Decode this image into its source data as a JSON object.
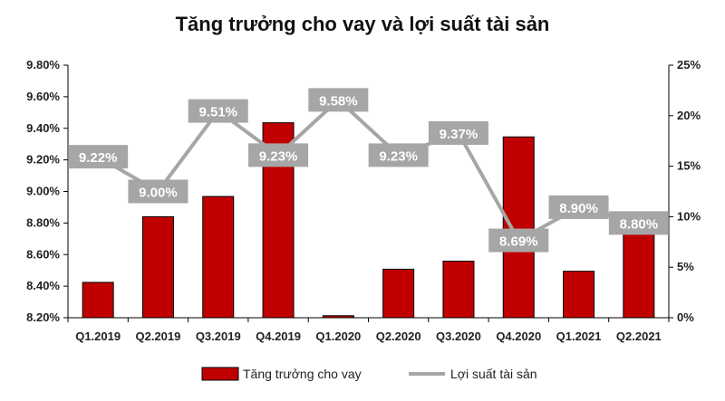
{
  "chart_data": {
    "type": "bar+line",
    "title": "Tăng trưởng cho vay và lợi suất tài sản",
    "categories": [
      "Q1.2019",
      "Q2.2019",
      "Q3.2019",
      "Q4.2019",
      "Q1.2020",
      "Q2.2020",
      "Q3.2020",
      "Q4.2020",
      "Q1.2021",
      "Q2.2021"
    ],
    "series": [
      {
        "name": "Tăng trưởng cho vay",
        "type": "bar",
        "axis": "right",
        "color": "#c00000",
        "values": [
          3.5,
          10.0,
          12.0,
          19.3,
          0.2,
          4.8,
          5.6,
          17.9,
          4.6,
          8.3
        ]
      },
      {
        "name": "Lợi suất tài sản",
        "type": "line",
        "axis": "left",
        "color": "#a6a6a6",
        "values": [
          9.22,
          9.0,
          9.51,
          9.23,
          9.58,
          9.23,
          9.37,
          8.69,
          8.9,
          8.8
        ],
        "labels": [
          "9.22%",
          "9.00%",
          "9.51%",
          "9.23%",
          "9.58%",
          "9.23%",
          "9.37%",
          "8.69%",
          "8.90%",
          "8.80%"
        ]
      }
    ],
    "y_left": {
      "min": 8.2,
      "max": 9.8,
      "step": 0.2,
      "ticks": [
        "8.20%",
        "8.40%",
        "8.60%",
        "8.80%",
        "9.00%",
        "9.20%",
        "9.40%",
        "9.60%",
        "9.80%"
      ]
    },
    "y_right": {
      "min": 0,
      "max": 25,
      "step": 5,
      "ticks": [
        "0%",
        "5%",
        "10%",
        "15%",
        "20%",
        "25%"
      ]
    },
    "grid": false,
    "legend": "bottom"
  }
}
